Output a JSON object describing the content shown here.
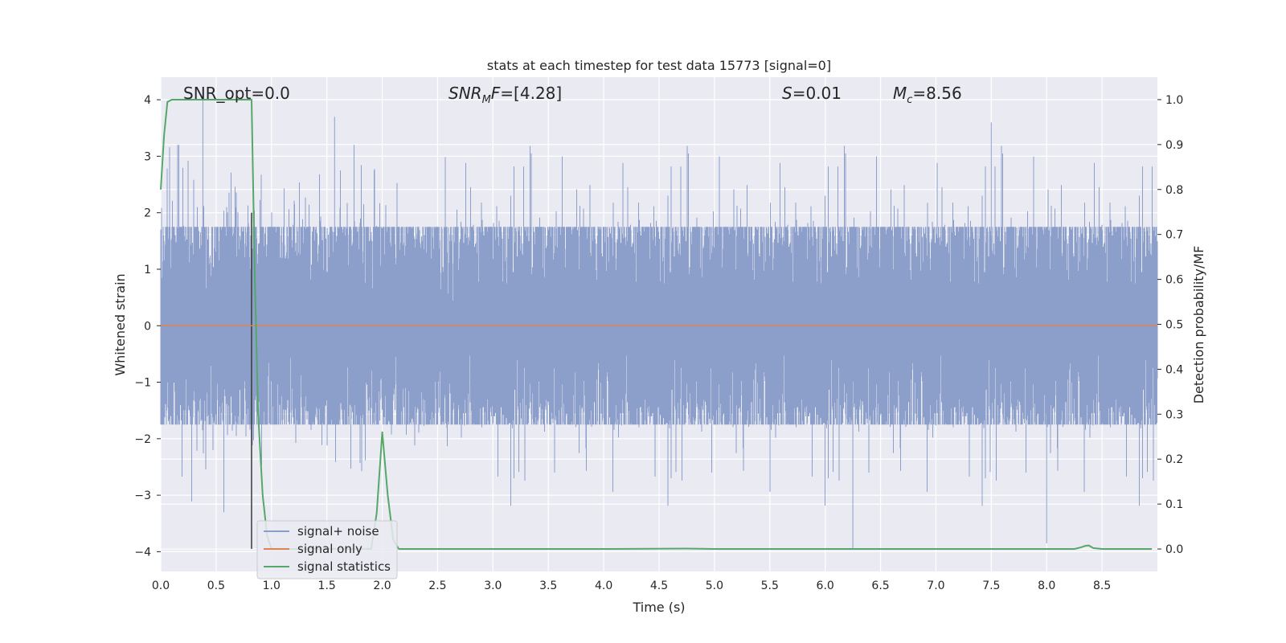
{
  "chart_data": {
    "type": "line",
    "title": "stats at each timestep for test data 15773 [signal=0]",
    "xlabel": "Time (s)",
    "ylabel_left": "Whitened strain",
    "ylabel_right": "Detection probability/MF",
    "xlim": [
      0.0,
      9.0
    ],
    "ylim_left": [
      -4.35,
      4.4
    ],
    "ylim_right": [
      -0.05,
      1.05
    ],
    "x_ticks": [
      0.0,
      0.5,
      1.0,
      1.5,
      2.0,
      2.5,
      3.0,
      3.5,
      4.0,
      4.5,
      5.0,
      5.5,
      6.0,
      6.5,
      7.0,
      7.5,
      8.0,
      8.5
    ],
    "x_tick_labels": [
      "0.0",
      "0.5",
      "1.0",
      "1.5",
      "2.0",
      "2.5",
      "3.0",
      "3.5",
      "4.0",
      "4.5",
      "5.0",
      "5.5",
      "6.0",
      "6.5",
      "7.0",
      "7.5",
      "8.0",
      "8.5"
    ],
    "y_left_ticks": [
      -4,
      -3,
      -2,
      -1,
      0,
      1,
      2,
      3,
      4
    ],
    "y_left_tick_labels": [
      "−4",
      "−3",
      "−2",
      "−1",
      "0",
      "1",
      "2",
      "3",
      "4"
    ],
    "y_right_ticks": [
      0.0,
      0.1,
      0.2,
      0.3,
      0.4,
      0.5,
      0.6,
      0.7,
      0.8,
      0.9,
      1.0
    ],
    "y_right_tick_labels": [
      "0.0",
      "0.1",
      "0.2",
      "0.3",
      "0.4",
      "0.5",
      "0.6",
      "0.7",
      "0.8",
      "0.9",
      "1.0"
    ],
    "grid": true,
    "legend_position": "lower-left",
    "annotations": {
      "snr_opt": "SNR_opt=0.0",
      "snr_mf": "=[4.28]",
      "s_label": "=0.01",
      "mc_label": "=8.56"
    },
    "vertical_marker_x": 0.82,
    "series": [
      {
        "name": "signal+ noise",
        "axis": "left",
        "color": "#8c9fcb",
        "style": "dense-noise",
        "envelope_typical": [
          -1.6,
          1.6
        ],
        "extremes_x": [
          0.38,
          1.57,
          6.25,
          7.5,
          8.0
        ],
        "extremes_y": [
          4.1,
          3.7,
          -3.95,
          3.6,
          -3.85
        ]
      },
      {
        "name": "signal only",
        "axis": "left",
        "color": "#dd8452",
        "x": [
          0.0,
          9.0
        ],
        "y": [
          0.0,
          0.0
        ]
      },
      {
        "name": "signal statistics",
        "axis": "right",
        "color": "#55a868",
        "x": [
          0.0,
          0.03,
          0.06,
          0.1,
          0.2,
          0.3,
          0.4,
          0.5,
          0.6,
          0.7,
          0.8,
          0.82,
          0.85,
          0.88,
          0.92,
          0.96,
          1.0,
          1.05,
          1.1,
          1.2,
          1.5,
          1.9,
          1.95,
          2.0,
          2.05,
          2.1,
          2.15,
          2.3,
          3.0,
          4.0,
          4.75,
          5.0,
          6.0,
          7.0,
          8.0,
          8.25,
          8.3,
          8.35,
          8.38,
          8.42,
          8.5,
          8.95
        ],
        "y": [
          0.8,
          0.92,
          0.995,
          1.0,
          1.0,
          1.0,
          1.0,
          1.0,
          1.0,
          1.0,
          1.0,
          1.0,
          0.6,
          0.3,
          0.12,
          0.03,
          0.0,
          0.0,
          0.0,
          0.0,
          0.0,
          0.0,
          0.08,
          0.26,
          0.12,
          0.02,
          0.0,
          0.0,
          0.0,
          0.0,
          0.001,
          0.0,
          0.0,
          0.0,
          0.0,
          0.0,
          0.003,
          0.007,
          0.008,
          0.002,
          0.0,
          0.0
        ]
      }
    ]
  }
}
